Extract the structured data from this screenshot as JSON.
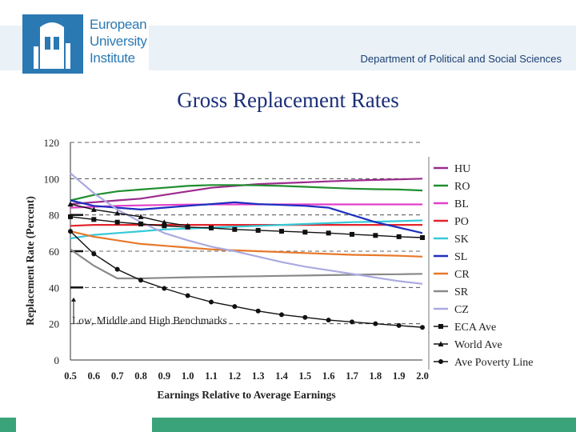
{
  "header": {
    "logo_lines": [
      "European",
      "University",
      "Institute"
    ],
    "department": "Department of Political and Social Sciences"
  },
  "slide_title": "Gross Replacement Rates",
  "chart_data": {
    "type": "line",
    "title": "",
    "xlabel": "Earnings Relative to Average Earnings",
    "ylabel": "Replacement Rate (Percent)",
    "xlim": [
      0.5,
      2.0
    ],
    "ylim": [
      0,
      120
    ],
    "x_ticks": [
      "0.5",
      "0.6",
      "0.7",
      "0.8",
      "0.9",
      "1.0",
      "1.1",
      "1.2",
      "1.3",
      "1.4",
      "1.5",
      "1.6",
      "1.7",
      "1.8",
      "1.9",
      "2.0"
    ],
    "y_ticks": [
      "120",
      "100",
      "80",
      "60",
      "40",
      "20",
      "0"
    ],
    "grid": "dashed horizontal",
    "legend_position": "right",
    "x": [
      0.5,
      0.6,
      0.7,
      0.8,
      0.9,
      1.0,
      1.1,
      1.2,
      1.3,
      1.4,
      1.5,
      1.6,
      1.7,
      1.8,
      1.9,
      2.0
    ],
    "benchmarks": {
      "label": "Low, Middle and High Benchmarks",
      "values": [
        40,
        60,
        80
      ]
    },
    "series": [
      {
        "name": "HU",
        "color": "#9c2b8c",
        "marker": "none",
        "values": [
          86,
          87,
          88,
          89,
          91,
          93,
          95,
          96,
          97,
          97.5,
          98,
          98.5,
          99,
          99.3,
          99.6,
          100
        ]
      },
      {
        "name": "RO",
        "color": "#1f8f2e",
        "marker": "none",
        "values": [
          88,
          91,
          93,
          94,
          95,
          96,
          96.5,
          96.5,
          96.3,
          96,
          95.5,
          95,
          94.5,
          94.2,
          94,
          93.5
        ]
      },
      {
        "name": "BL",
        "color": "#e23fc9",
        "marker": "none",
        "values": [
          84,
          84.5,
          85,
          85.3,
          85.5,
          85.7,
          85.8,
          85.8,
          85.8,
          85.8,
          85.8,
          85.8,
          85.8,
          85.8,
          85.8,
          85.8
        ]
      },
      {
        "name": "PO",
        "color": "#e3242b",
        "marker": "none",
        "values": [
          74,
          74.5,
          74.5,
          74.5,
          74.5,
          74.5,
          74.5,
          74.5,
          74.5,
          74.5,
          74.5,
          74.5,
          74.5,
          74.5,
          74.5,
          74.5
        ]
      },
      {
        "name": "SK",
        "color": "#35c9d8",
        "marker": "none",
        "values": [
          67,
          69,
          70,
          71,
          72,
          72.5,
          73,
          73.5,
          74,
          74.5,
          75,
          75.5,
          76,
          76.3,
          76.6,
          77
        ]
      },
      {
        "name": "SL",
        "color": "#1c2fbf",
        "marker": "none",
        "values": [
          88,
          85,
          84,
          83,
          84,
          85,
          86,
          87,
          86,
          85.5,
          85,
          84,
          80,
          76,
          73,
          70
        ]
      },
      {
        "name": "CR",
        "color": "#e8782a",
        "marker": "none",
        "values": [
          71,
          68,
          66,
          64,
          63,
          62,
          61,
          60.5,
          60,
          59.5,
          59,
          58.5,
          58,
          57.8,
          57.5,
          57
        ]
      },
      {
        "name": "SR",
        "color": "#8a8a8a",
        "marker": "none",
        "values": [
          61,
          52,
          45,
          45,
          45.3,
          45.6,
          45.8,
          46,
          46.2,
          46.4,
          46.6,
          46.8,
          47,
          47.2,
          47.3,
          47.5
        ]
      },
      {
        "name": "CZ",
        "color": "#aaaae0",
        "marker": "none",
        "values": [
          103,
          92,
          83,
          76,
          70,
          66,
          62.5,
          60,
          57,
          54,
          51.5,
          49.5,
          47.5,
          45.5,
          43.5,
          42
        ]
      },
      {
        "name": "ECA Ave",
        "color": "#111111",
        "marker": "square",
        "values": [
          79,
          77.5,
          76,
          75,
          74,
          73.3,
          72.8,
          72,
          71.5,
          71,
          70.5,
          70,
          69.3,
          68.7,
          68,
          67.5
        ]
      },
      {
        "name": "World Ave",
        "color": "#111111",
        "marker": "triangle",
        "values": [
          86,
          83,
          81,
          79,
          76,
          74,
          null,
          null,
          null,
          null,
          null,
          null,
          null,
          null,
          null,
          null
        ]
      },
      {
        "name": "Ave Poverty Line",
        "color": "#111111",
        "marker": "circle",
        "values": [
          71,
          58.5,
          50,
          44,
          39.5,
          35.5,
          32,
          29.5,
          27,
          25,
          23.5,
          22,
          21,
          20,
          19,
          18
        ]
      }
    ]
  }
}
